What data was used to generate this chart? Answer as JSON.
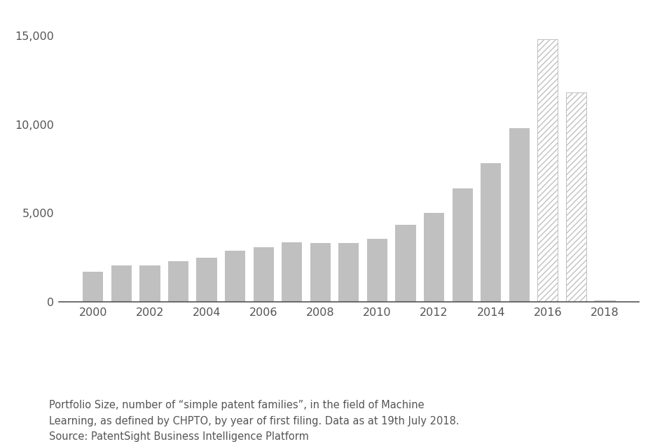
{
  "years": [
    2000,
    2001,
    2002,
    2003,
    2004,
    2005,
    2006,
    2007,
    2008,
    2009,
    2010,
    2011,
    2012,
    2013,
    2014,
    2015,
    2016,
    2017,
    2018
  ],
  "values": [
    1700,
    2050,
    2050,
    2300,
    2500,
    2900,
    3100,
    3350,
    3300,
    3300,
    3550,
    4350,
    5000,
    6400,
    7800,
    9800,
    14800,
    11800,
    100
  ],
  "hatched": [
    false,
    false,
    false,
    false,
    false,
    false,
    false,
    false,
    false,
    false,
    false,
    false,
    false,
    false,
    false,
    false,
    true,
    true,
    true
  ],
  "solid_color": "#c0c0c0",
  "hatch_facecolor": "white",
  "hatch_edgecolor": "#c0c0c0",
  "hatch_pattern": "////",
  "background_color": "#ffffff",
  "ylim": [
    0,
    16000
  ],
  "yticks": [
    0,
    5000,
    10000,
    15000
  ],
  "ytick_labels": [
    "0",
    "5,000",
    "10,000",
    "15,000"
  ],
  "xticks": [
    2000,
    2002,
    2004,
    2006,
    2008,
    2010,
    2012,
    2014,
    2016,
    2018
  ],
  "caption": "Portfolio Size, number of “simple patent families”, in the field of Machine\nLearning, as defined by CHPTO, by year of first filing. Data as at 19th July 2018.\nSource: PatentSight Business Intelligence Platform",
  "caption_fontsize": 10.5,
  "axis_fontsize": 11.5,
  "bar_width": 0.72,
  "spine_color": "#555555",
  "label_color": "#555555",
  "xlim_left": 1998.8,
  "xlim_right": 2019.2
}
